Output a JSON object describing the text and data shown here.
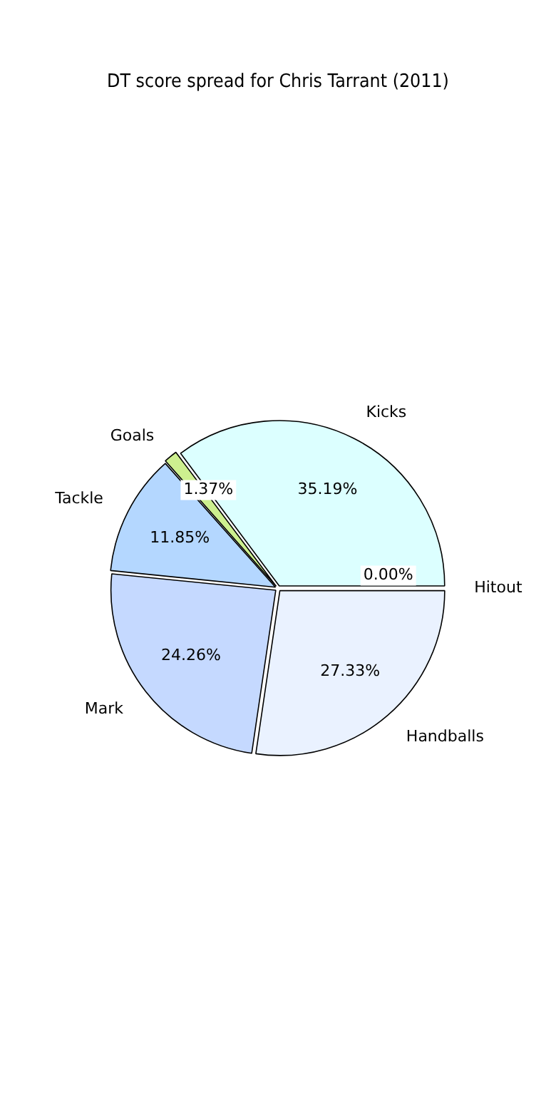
{
  "chart_data": {
    "type": "pie",
    "title": "DT score spread for Chris Tarrant (2011)",
    "categories": [
      "Handballs",
      "Mark",
      "Tackle",
      "Goals",
      "Kicks",
      "Hitout"
    ],
    "values": [
      27.33,
      24.26,
      11.85,
      1.37,
      35.19,
      0.0
    ],
    "value_labels": [
      "27.33%",
      "24.26%",
      "11.85%",
      "1.37%",
      "35.19%",
      "0.00%"
    ],
    "colors": [
      "#eaf2ff",
      "#c5d9ff",
      "#b4d7ff",
      "#cdef8f",
      "#dcffff",
      "#d0d0d0"
    ],
    "legend": false
  }
}
